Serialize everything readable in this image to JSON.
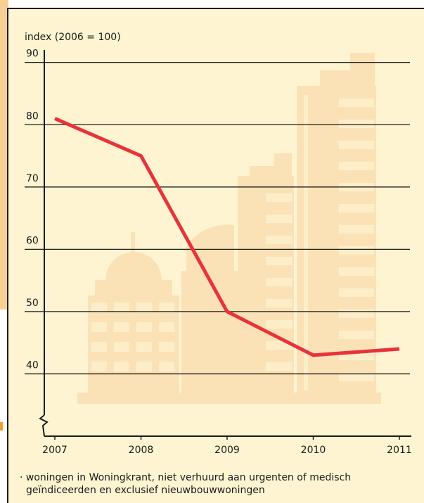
{
  "chart_data": {
    "type": "line",
    "y_axis_label": "index (2006 = 100)",
    "x": [
      2007,
      2008,
      2009,
      2010,
      2011
    ],
    "series": [
      {
        "color": "#e8333a",
        "values": [
          81,
          75,
          50,
          43,
          44
        ]
      }
    ],
    "xlim": [
      2007,
      2011
    ],
    "xticks": [
      2007,
      2008,
      2009,
      2010,
      2011
    ],
    "ylim": [
      30,
      92
    ],
    "yticks": [
      40,
      50,
      60,
      70,
      80,
      90
    ],
    "grid": true,
    "footnote": [
      "· woningen in Woningkrant, niet verhuurd aan urgenten of medisch",
      "geïndiceerden en exclusief nieuwbouwwoningen"
    ]
  }
}
